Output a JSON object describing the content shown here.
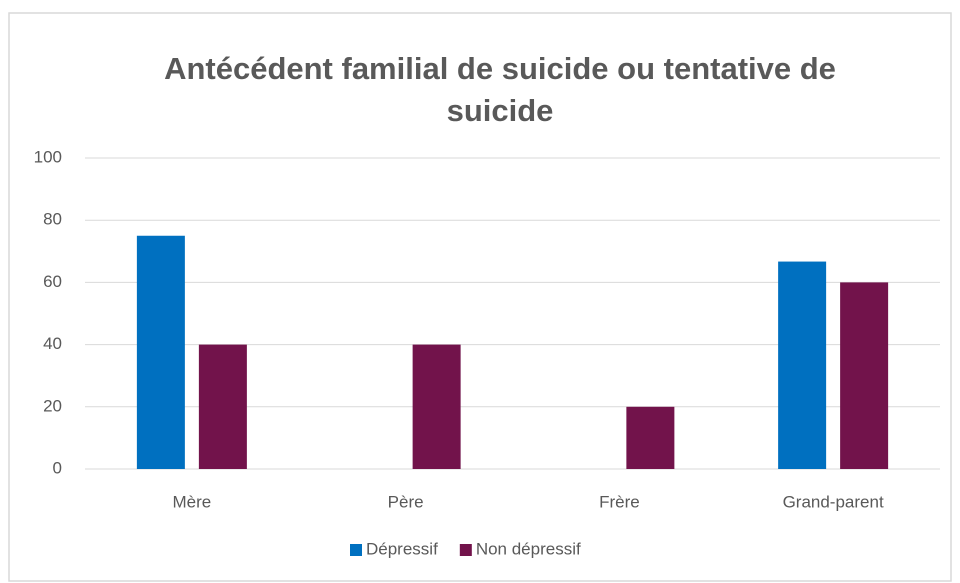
{
  "chart_data": {
    "type": "bar",
    "title": "Antécédent familial de suicide ou tentative de suicide",
    "categories": [
      "Mère",
      "Père",
      "Frère",
      "Grand-parent"
    ],
    "series": [
      {
        "name": "Dépressif",
        "color": "#0070c0",
        "values": [
          75,
          0,
          0,
          66.7
        ]
      },
      {
        "name": "Non dépressif",
        "color": "#72134b",
        "values": [
          40,
          40,
          20,
          60
        ]
      }
    ],
    "ylim": [
      0,
      100
    ],
    "yticks": [
      0,
      20,
      40,
      60,
      80,
      100
    ],
    "grid": true,
    "legend": "bottom"
  }
}
